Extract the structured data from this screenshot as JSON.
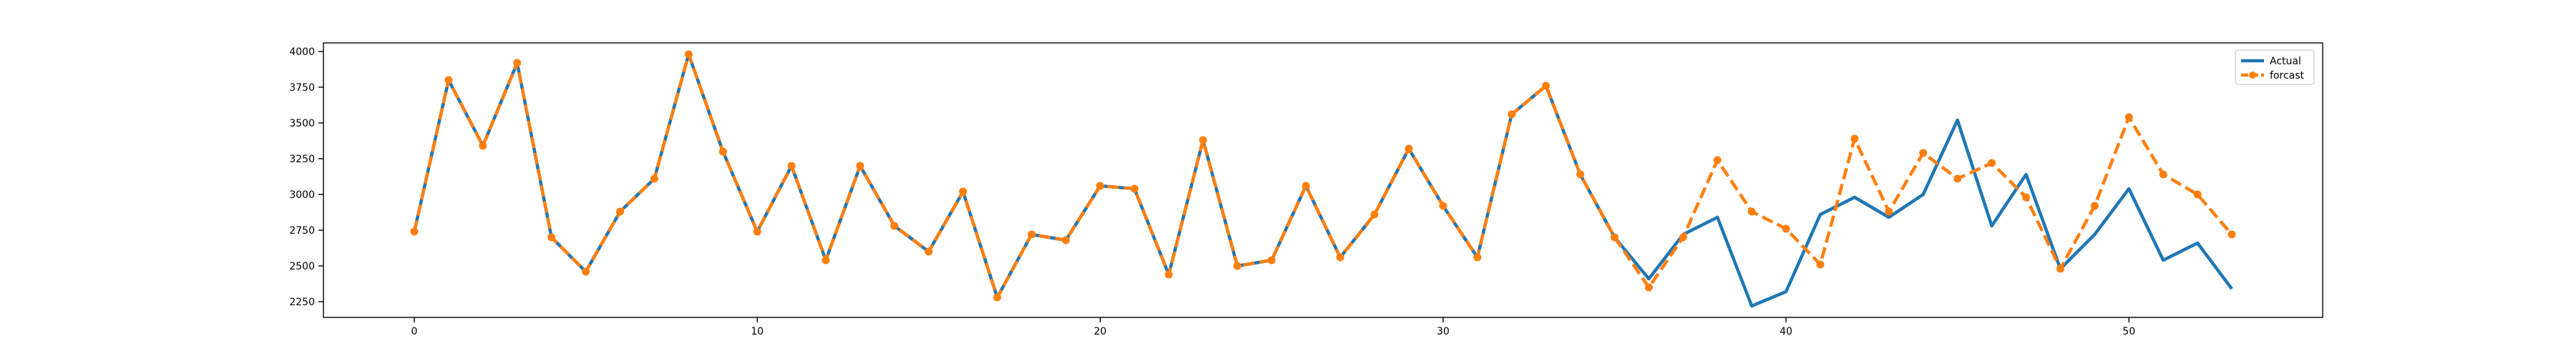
{
  "chart_data": {
    "type": "line",
    "title": "",
    "xlabel": "",
    "ylabel": "",
    "xlim": [
      -2.65,
      55.65
    ],
    "ylim": [
      2140,
      4060
    ],
    "x_ticks": [
      0,
      10,
      20,
      30,
      40,
      50
    ],
    "y_ticks": [
      2250,
      2500,
      2750,
      3000,
      3250,
      3500,
      3750,
      4000
    ],
    "x_tick_labels": [
      "0",
      "10",
      "20",
      "30",
      "40",
      "50"
    ],
    "y_tick_labels": [
      "2250",
      "2500",
      "2750",
      "3000",
      "3250",
      "3500",
      "3750",
      "4000"
    ],
    "grid": false,
    "legend_position": "top-right",
    "series": [
      {
        "name": "Actual",
        "color": "#1f77b4",
        "style": "solid",
        "marker": "none",
        "values": [
          2740,
          3800,
          3340,
          3920,
          2700,
          2460,
          2880,
          3110,
          3980,
          3300,
          2740,
          3200,
          2540,
          3200,
          2780,
          2600,
          3020,
          2280,
          2720,
          2680,
          3060,
          3040,
          2440,
          3380,
          2500,
          2540,
          3060,
          2560,
          2860,
          3320,
          2920,
          2560,
          3560,
          3760,
          3140,
          2700,
          2410,
          2720,
          2840,
          2220,
          2320,
          2860,
          2980,
          2840,
          3000,
          3520,
          2780,
          3140,
          2480,
          2720,
          3040,
          2540,
          2660,
          2340
        ]
      },
      {
        "name": "forcast",
        "color": "#ff7f0e",
        "style": "dashed",
        "marker": "circle",
        "values": [
          2740,
          3800,
          3340,
          3920,
          2700,
          2460,
          2880,
          3110,
          3980,
          3300,
          2740,
          3200,
          2540,
          3200,
          2780,
          2600,
          3020,
          2280,
          2720,
          2680,
          3060,
          3040,
          2440,
          3380,
          2500,
          2540,
          3060,
          2560,
          2860,
          3320,
          2920,
          2560,
          3560,
          3760,
          3140,
          2700,
          2350,
          2700,
          3240,
          2880,
          2760,
          2510,
          3390,
          2880,
          3290,
          3110,
          3220,
          2980,
          2480,
          2920,
          3540,
          3140,
          3000,
          2720
        ]
      }
    ]
  }
}
